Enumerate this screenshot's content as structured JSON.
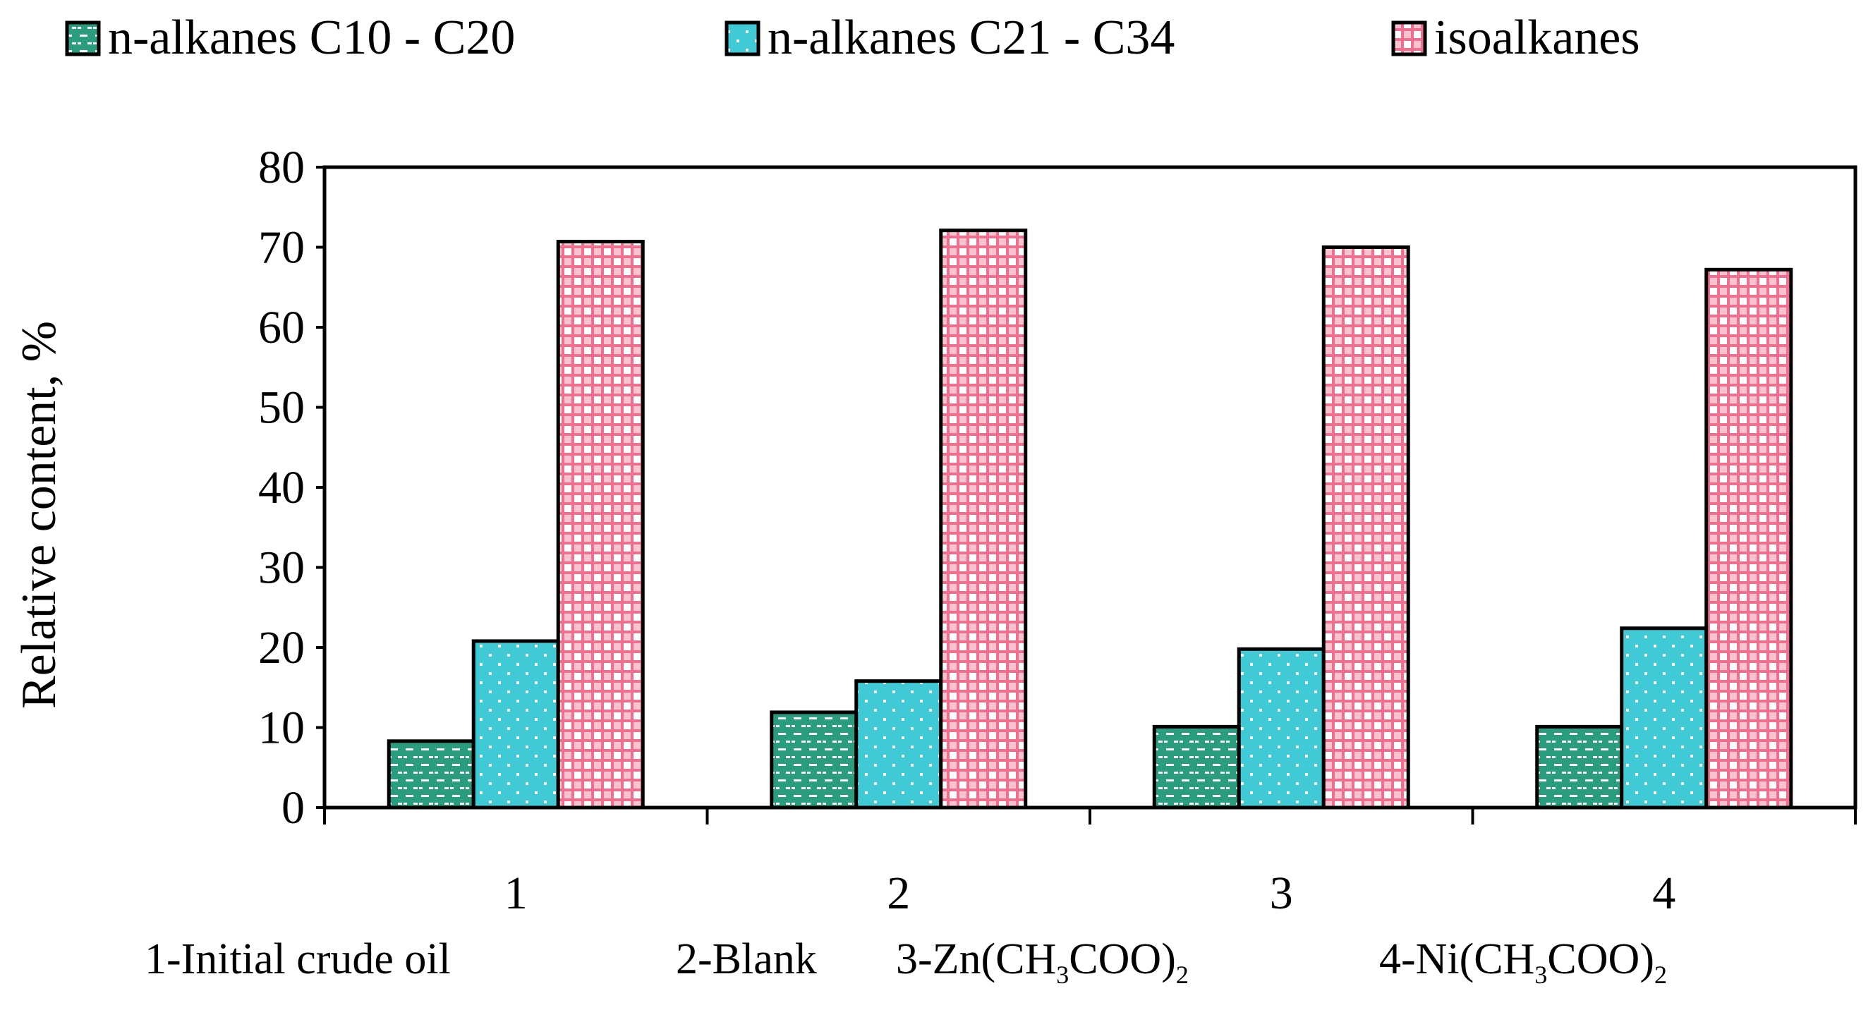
{
  "chart_data": {
    "type": "bar",
    "title": "",
    "xlabel": "",
    "ylabel": "Relative content, %",
    "ylim": [
      0,
      80
    ],
    "yticks": [
      "0",
      "10",
      "20",
      "30",
      "40",
      "50",
      "60",
      "70",
      "80"
    ],
    "categories": [
      "1",
      "2",
      "3",
      "4"
    ],
    "series": [
      {
        "name": "n-alkanes C10 - C20",
        "color": "#2a9d7e",
        "pattern": "dashes",
        "values": [
          8.3,
          11.9,
          10.1,
          10.1
        ]
      },
      {
        "name": "n-alkanes C21 - C34",
        "color": "#3fcad6",
        "pattern": "dots",
        "values": [
          20.8,
          15.8,
          19.8,
          22.4
        ]
      },
      {
        "name": "isoalkanes",
        "color": "#f06f8e",
        "pattern": "checker",
        "values": [
          70.7,
          72.1,
          70.0,
          67.2
        ]
      }
    ],
    "legend_position": "top"
  },
  "caption": {
    "item1": "1-Initial crude oil",
    "item2": "2-Blank",
    "item3_pre": "3-Zn(CH",
    "item3_sub1": "3",
    "item3_mid": "COO)",
    "item3_sub2": "2",
    "item4_pre": "4-Ni(CH",
    "item4_sub1": "3",
    "item4_mid": "COO)",
    "item4_sub2": "2"
  }
}
